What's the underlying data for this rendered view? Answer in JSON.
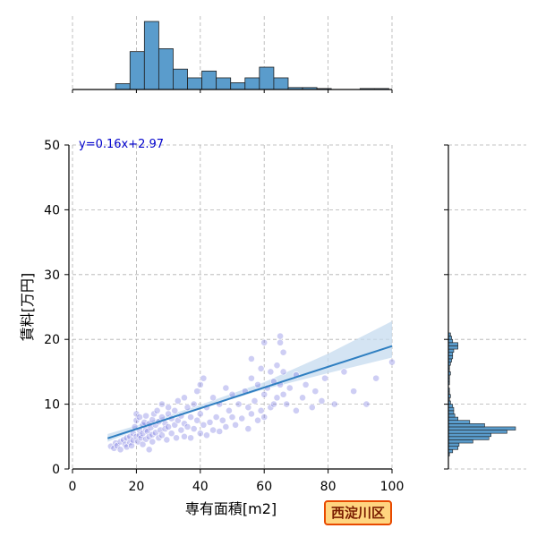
{
  "chart_data": {
    "type": "scatter",
    "title": "",
    "xlabel": "専有面積[m2]",
    "ylabel": "賃料[万円]",
    "xlim": [
      0,
      100
    ],
    "ylim": [
      0,
      50
    ],
    "xticks": [
      0,
      20,
      40,
      60,
      80,
      100
    ],
    "yticks": [
      0,
      10,
      20,
      30,
      40,
      50
    ],
    "grid": true,
    "regression": {
      "equation_label": "y=0.16x+2.97",
      "slope": 0.16,
      "intercept": 2.97,
      "x_range": [
        11,
        100
      ],
      "ci_lower": [
        [
          11,
          4.2
        ],
        [
          20,
          6.0
        ],
        [
          40,
          9.3
        ],
        [
          60,
          12.3
        ],
        [
          80,
          14.8
        ],
        [
          100,
          17.2
        ]
      ],
      "ci_upper": [
        [
          11,
          5.4
        ],
        [
          20,
          6.7
        ],
        [
          40,
          9.9
        ],
        [
          60,
          13.4
        ],
        [
          80,
          17.8
        ],
        [
          100,
          22.8
        ]
      ]
    },
    "points": [
      [
        12,
        3.5
      ],
      [
        13,
        3.2
      ],
      [
        13.5,
        4.0
      ],
      [
        14,
        3.6
      ],
      [
        15,
        4.2
      ],
      [
        15,
        3.0
      ],
      [
        16,
        4.5
      ],
      [
        16.5,
        3.8
      ],
      [
        17,
        4.8
      ],
      [
        17,
        3.4
      ],
      [
        18,
        5.0
      ],
      [
        18,
        4.1
      ],
      [
        18.5,
        3.6
      ],
      [
        19,
        5.5
      ],
      [
        19,
        4.4
      ],
      [
        19.5,
        6.5
      ],
      [
        20,
        5.0
      ],
      [
        20,
        7.5
      ],
      [
        20,
        8.5
      ],
      [
        20.5,
        4.2
      ],
      [
        21,
        6.0
      ],
      [
        21,
        5.2
      ],
      [
        21,
        8.0
      ],
      [
        21.5,
        4.8
      ],
      [
        22,
        6.8
      ],
      [
        22,
        5.5
      ],
      [
        22,
        3.8
      ],
      [
        22.5,
        7.2
      ],
      [
        23,
        6.1
      ],
      [
        23,
        4.6
      ],
      [
        23,
        8.2
      ],
      [
        23.5,
        5.8
      ],
      [
        24,
        7.0
      ],
      [
        24,
        5.0
      ],
      [
        24,
        3.0
      ],
      [
        24.5,
        6.4
      ],
      [
        25,
        7.6
      ],
      [
        25,
        5.3
      ],
      [
        25,
        4.2
      ],
      [
        25.5,
        8.5
      ],
      [
        26,
        6.8
      ],
      [
        26,
        5.6
      ],
      [
        26.5,
        9.0
      ],
      [
        27,
        7.3
      ],
      [
        27,
        4.8
      ],
      [
        27.5,
        6.0
      ],
      [
        28,
        8.0
      ],
      [
        28,
        5.2
      ],
      [
        28,
        10.0
      ],
      [
        29,
        7.0
      ],
      [
        29,
        6.2
      ],
      [
        29.5,
        4.5
      ],
      [
        30,
        8.5
      ],
      [
        30,
        6.5
      ],
      [
        30,
        9.5
      ],
      [
        31,
        7.8
      ],
      [
        31,
        5.5
      ],
      [
        32,
        9.0
      ],
      [
        32,
        6.8
      ],
      [
        32.5,
        4.8
      ],
      [
        33,
        10.5
      ],
      [
        33,
        7.5
      ],
      [
        34,
        8.2
      ],
      [
        34,
        6.0
      ],
      [
        35,
        11.0
      ],
      [
        35,
        7.0
      ],
      [
        35,
        5.0
      ],
      [
        36,
        9.5
      ],
      [
        36,
        6.5
      ],
      [
        37,
        8.0
      ],
      [
        37,
        4.8
      ],
      [
        38,
        10.0
      ],
      [
        38,
        6.2
      ],
      [
        39,
        12.0
      ],
      [
        39,
        7.5
      ],
      [
        40,
        13.0
      ],
      [
        40,
        8.5
      ],
      [
        40,
        5.5
      ],
      [
        41,
        14.0
      ],
      [
        41,
        6.8
      ],
      [
        42,
        9.5
      ],
      [
        42,
        5.2
      ],
      [
        43,
        7.2
      ],
      [
        44,
        11.0
      ],
      [
        44,
        6.0
      ],
      [
        45,
        8.0
      ],
      [
        46,
        10.0
      ],
      [
        46,
        5.8
      ],
      [
        47,
        7.5
      ],
      [
        48,
        12.5
      ],
      [
        48,
        6.5
      ],
      [
        49,
        9.0
      ],
      [
        50,
        8.0
      ],
      [
        50,
        11.5
      ],
      [
        51,
        6.8
      ],
      [
        52,
        10.0
      ],
      [
        53,
        7.8
      ],
      [
        54,
        12.0
      ],
      [
        55,
        9.5
      ],
      [
        55,
        6.2
      ],
      [
        56,
        14.0
      ],
      [
        56,
        8.5
      ],
      [
        56,
        17.0
      ],
      [
        57,
        10.5
      ],
      [
        58,
        13.0
      ],
      [
        58,
        7.5
      ],
      [
        59,
        15.5
      ],
      [
        59,
        9.0
      ],
      [
        60,
        19.5
      ],
      [
        60,
        11.5
      ],
      [
        60,
        8.0
      ],
      [
        61,
        12.5
      ],
      [
        62,
        15.0
      ],
      [
        62,
        9.5
      ],
      [
        63,
        13.5
      ],
      [
        63,
        10.0
      ],
      [
        64,
        16.0
      ],
      [
        64,
        11.0
      ],
      [
        65,
        20.5
      ],
      [
        65,
        19.5
      ],
      [
        65,
        13.0
      ],
      [
        66,
        18.0
      ],
      [
        66,
        15.0
      ],
      [
        66,
        11.5
      ],
      [
        67,
        10.0
      ],
      [
        68,
        12.5
      ],
      [
        70,
        14.5
      ],
      [
        70,
        9.0
      ],
      [
        72,
        11.0
      ],
      [
        73,
        13.0
      ],
      [
        75,
        9.5
      ],
      [
        76,
        12.0
      ],
      [
        78,
        10.5
      ],
      [
        79,
        14.0
      ],
      [
        82,
        10.0
      ],
      [
        85,
        15.0
      ],
      [
        88,
        12.0
      ],
      [
        92,
        10.0
      ],
      [
        95,
        14.0
      ],
      [
        100,
        16.5
      ]
    ],
    "marginal_x": {
      "bin_edges": [
        0,
        4.5,
        9,
        13.5,
        18,
        22.5,
        27,
        31.5,
        36,
        40.5,
        45,
        49.5,
        54,
        58.5,
        63,
        67.5,
        72,
        76.5,
        81,
        85.5,
        90,
        94.5,
        99
      ],
      "counts": [
        0,
        0,
        0,
        6,
        39,
        70,
        42,
        21,
        12,
        19,
        12,
        7,
        12,
        23,
        12,
        2,
        2,
        1,
        0,
        0,
        1,
        1
      ]
    },
    "marginal_y": {
      "bin_edges": [
        2,
        2.5,
        3,
        3.5,
        4,
        4.5,
        5,
        5.5,
        6,
        6.5,
        7,
        7.5,
        8,
        8.5,
        9,
        9.5,
        10,
        10.5,
        11,
        11.5,
        12,
        12.5,
        13,
        13.5,
        14,
        14.5,
        15,
        15.5,
        16,
        16.5,
        17,
        17.5,
        18,
        18.5,
        19,
        19.5,
        20,
        20.5,
        21
      ],
      "counts": [
        1,
        4,
        9,
        10,
        23,
        38,
        40,
        55,
        63,
        34,
        20,
        9,
        6,
        5,
        5,
        4,
        2,
        1,
        2,
        1,
        1,
        0,
        1,
        1,
        1,
        2,
        1,
        1,
        2,
        3,
        4,
        4,
        5,
        9,
        9,
        4,
        3,
        2
      ]
    }
  },
  "badge": {
    "ward_label": "西淀川区"
  },
  "colors": {
    "hist_fill": "#5a9ccc",
    "hist_edge": "#1f1f1f",
    "point_fill": "#6666dd",
    "point_dark": "#000099",
    "regression_line": "#2f7fc1",
    "ci_band": "#c6dbef",
    "grid": "#b0b0b0",
    "equation_text": "#0000cc",
    "badge_bg": "#ffd580",
    "badge_border": "#e84a00"
  }
}
